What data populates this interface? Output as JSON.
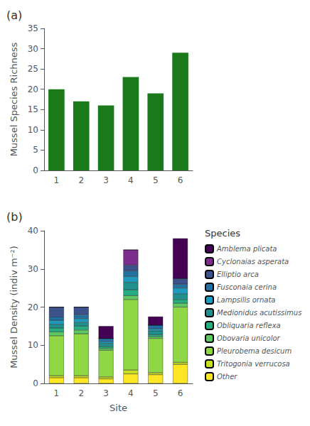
{
  "chart_data": [
    {
      "type": "bar",
      "title": "(a)",
      "categories": [
        "1",
        "2",
        "3",
        "4",
        "5",
        "6"
      ],
      "values": [
        20,
        17,
        16,
        23,
        19,
        29
      ],
      "color": "#1a7a1a",
      "ylabel": "Mussel Species Richness",
      "ylim": [
        0,
        35
      ],
      "yticks": [
        0,
        5,
        10,
        15,
        20,
        25,
        30,
        35
      ],
      "grid": false
    },
    {
      "type": "bar",
      "title": "(b)",
      "stacked": true,
      "categories": [
        "1",
        "2",
        "3",
        "4",
        "5",
        "6"
      ],
      "xlabel": "Site",
      "ylabel": "Mussel Density (indiv m⁻²)",
      "ylim": [
        0,
        40
      ],
      "yticks": [
        0,
        10,
        20,
        30,
        40
      ],
      "grid": false,
      "legend": "right",
      "legend_title": "Species",
      "series": [
        {
          "name": "Other",
          "color": "#fde725",
          "values": [
            1.5,
            1.5,
            1.2,
            2.5,
            2.3,
            5.0
          ]
        },
        {
          "name": "Tritogonia verrucosa",
          "color": "#c8e020",
          "values": [
            0.5,
            0.5,
            0.5,
            1.0,
            0.5,
            0.5
          ]
        },
        {
          "name": "Pleurobema desicum",
          "color": "#8fd744",
          "values": [
            10.5,
            11.0,
            7.0,
            18.5,
            9.0,
            14.5
          ]
        },
        {
          "name": "Obovaria unicolor",
          "color": "#5ec962",
          "values": [
            1.0,
            1.0,
            0.5,
            1.0,
            0.5,
            1.0
          ]
        },
        {
          "name": "Obliquaria reflexa",
          "color": "#27ad81",
          "values": [
            1.0,
            1.0,
            0.5,
            1.5,
            0.5,
            1.0
          ]
        },
        {
          "name": "Medionidus acutissimus",
          "color": "#21908c",
          "values": [
            1.0,
            1.0,
            0.8,
            2.0,
            1.0,
            1.5
          ]
        },
        {
          "name": "Lampsilis ornata",
          "color": "#1f9abf",
          "values": [
            1.0,
            1.0,
            0.5,
            1.5,
            0.5,
            1.5
          ]
        },
        {
          "name": "Fusconaia cerina",
          "color": "#2470a0",
          "values": [
            1.0,
            1.0,
            0.8,
            1.5,
            1.0,
            1.0
          ]
        },
        {
          "name": "Elliptio arca",
          "color": "#3b528b",
          "values": [
            2.5,
            2.0,
            0.0,
            1.5,
            0.0,
            1.5
          ]
        },
        {
          "name": "Cyclonaias asperata",
          "color": "#7c2d8e",
          "values": [
            0.0,
            0.0,
            0.0,
            4.0,
            0.0,
            0.0
          ]
        },
        {
          "name": "Amblema plicata",
          "color": "#440154",
          "values": [
            0.0,
            0.0,
            3.2,
            0.0,
            2.2,
            10.5
          ]
        }
      ]
    }
  ]
}
